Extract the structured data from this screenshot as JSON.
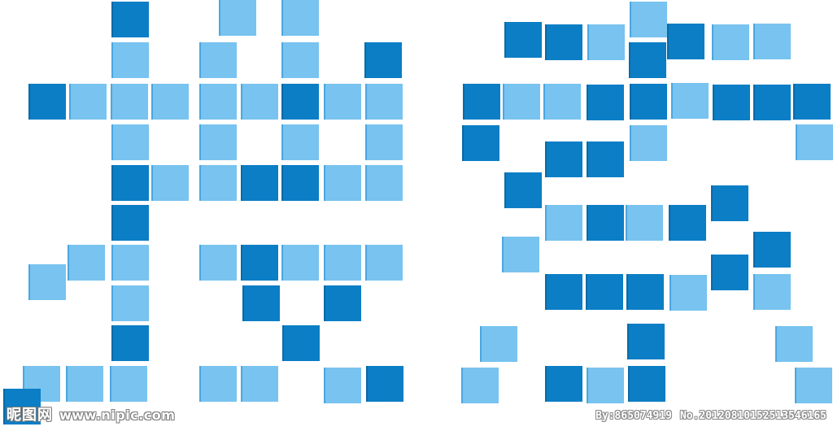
{
  "watermark": {
    "logo": "昵图网",
    "site": "www.nipic.com",
    "author": "By:865074919",
    "number": "No.20120810152513546165"
  },
  "colors": {
    "dark_blue": "#0b7ec5",
    "light_blue": "#78c3ef",
    "background": "#ffffff"
  }
}
